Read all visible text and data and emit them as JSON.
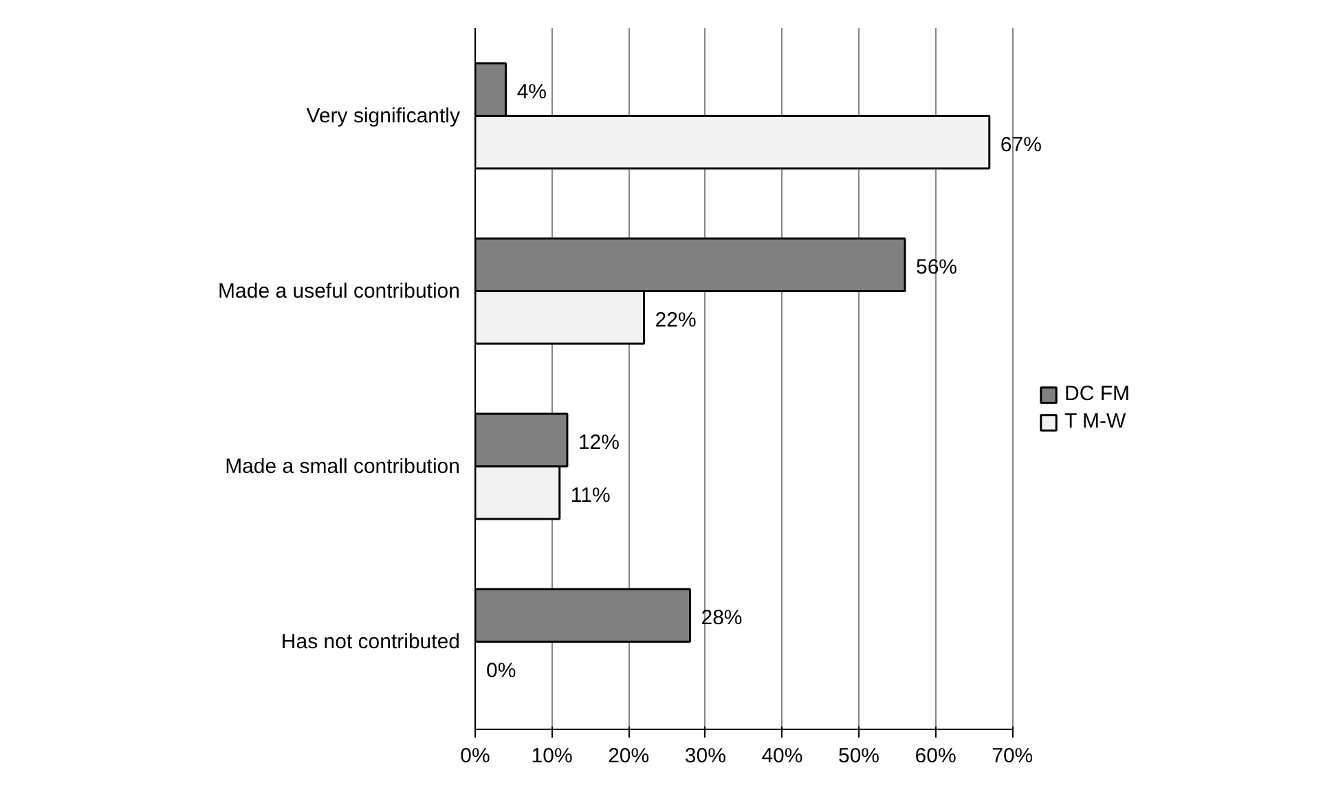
{
  "chart_data": {
    "type": "bar",
    "orientation": "horizontal",
    "categories": [
      "Very significantly",
      "Made a useful contribution",
      "Made a small contribution",
      "Has not contributed"
    ],
    "series": [
      {
        "name": "DC FM",
        "color": "#808080",
        "values": [
          4,
          56,
          12,
          28
        ],
        "value_labels": [
          "4%",
          "56%",
          "12%",
          "28%"
        ]
      },
      {
        "name": "T M-W",
        "color": "#f2f2f2",
        "values": [
          67,
          22,
          11,
          0
        ],
        "value_labels": [
          "67%",
          "22%",
          "11%",
          "0%"
        ]
      }
    ],
    "xlim": [
      0,
      70
    ],
    "xticks": [
      {
        "value": 0,
        "label": "0%"
      },
      {
        "value": 10,
        "label": "10%"
      },
      {
        "value": 20,
        "label": "20%"
      },
      {
        "value": 30,
        "label": "30%"
      },
      {
        "value": 40,
        "label": "40%"
      },
      {
        "value": 50,
        "label": "50%"
      },
      {
        "value": 60,
        "label": "60%"
      },
      {
        "value": 70,
        "label": "70%"
      }
    ],
    "grid": "x",
    "legend": "right"
  }
}
